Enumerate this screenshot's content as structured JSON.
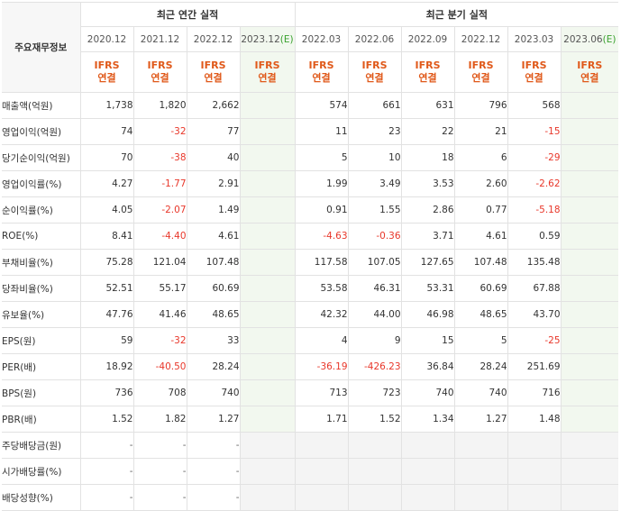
{
  "header": {
    "label": "주요재무정보",
    "annual_group": "최근 연간 실적",
    "quarter_group": "최근 분기 실적",
    "annual_periods": [
      "2020.12",
      "2021.12",
      "2022.12"
    ],
    "annual_estimate": {
      "period": "2023.12",
      "suffix": "(E)"
    },
    "quarter_periods": [
      "2022.03",
      "2022.06",
      "2022.09",
      "2022.12",
      "2023.03"
    ],
    "quarter_estimate": {
      "period": "2023.06",
      "suffix": "(E)"
    },
    "basis_line1": "IFRS",
    "basis_line2": "연결"
  },
  "rows": [
    {
      "label": "매출액(억원)",
      "annual": [
        "1,738",
        "1,820",
        "2,662",
        ""
      ],
      "quarter": [
        "574",
        "661",
        "631",
        "796",
        "568",
        ""
      ]
    },
    {
      "label": "영업이익(억원)",
      "annual": [
        "74",
        "-32",
        "77",
        ""
      ],
      "quarter": [
        "11",
        "23",
        "22",
        "21",
        "-15",
        ""
      ]
    },
    {
      "label": "당기순이익(억원)",
      "annual": [
        "70",
        "-38",
        "40",
        ""
      ],
      "quarter": [
        "5",
        "10",
        "18",
        "6",
        "-29",
        ""
      ]
    },
    {
      "label": "영업이익률(%)",
      "annual": [
        "4.27",
        "-1.77",
        "2.91",
        ""
      ],
      "quarter": [
        "1.99",
        "3.49",
        "3.53",
        "2.60",
        "-2.62",
        ""
      ]
    },
    {
      "label": "순이익률(%)",
      "annual": [
        "4.05",
        "-2.07",
        "1.49",
        ""
      ],
      "quarter": [
        "0.91",
        "1.55",
        "2.86",
        "0.77",
        "-5.18",
        ""
      ]
    },
    {
      "label": "ROE(%)",
      "annual": [
        "8.41",
        "-4.40",
        "4.61",
        ""
      ],
      "quarter": [
        "-4.63",
        "-0.36",
        "3.71",
        "4.61",
        "0.59",
        ""
      ]
    },
    {
      "label": "부채비율(%)",
      "annual": [
        "75.28",
        "121.04",
        "107.48",
        ""
      ],
      "quarter": [
        "117.58",
        "107.05",
        "127.65",
        "107.48",
        "135.48",
        ""
      ]
    },
    {
      "label": "당좌비율(%)",
      "annual": [
        "52.51",
        "55.17",
        "60.69",
        ""
      ],
      "quarter": [
        "53.58",
        "46.31",
        "53.31",
        "60.69",
        "67.88",
        ""
      ]
    },
    {
      "label": "유보율(%)",
      "annual": [
        "47.76",
        "41.46",
        "48.65",
        ""
      ],
      "quarter": [
        "42.32",
        "44.00",
        "46.98",
        "48.65",
        "43.70",
        ""
      ]
    },
    {
      "label": "EPS(원)",
      "annual": [
        "59",
        "-32",
        "33",
        ""
      ],
      "quarter": [
        "4",
        "9",
        "15",
        "5",
        "-25",
        ""
      ]
    },
    {
      "label": "PER(배)",
      "annual": [
        "18.92",
        "-40.50",
        "28.24",
        ""
      ],
      "quarter": [
        "-36.19",
        "-426.23",
        "36.84",
        "28.24",
        "251.69",
        ""
      ]
    },
    {
      "label": "BPS(원)",
      "annual": [
        "736",
        "708",
        "740",
        ""
      ],
      "quarter": [
        "713",
        "723",
        "740",
        "740",
        "716",
        ""
      ]
    },
    {
      "label": "PBR(배)",
      "annual": [
        "1.52",
        "1.82",
        "1.27",
        ""
      ],
      "quarter": [
        "1.71",
        "1.52",
        "1.34",
        "1.27",
        "1.48",
        ""
      ]
    },
    {
      "label": "주당배당금(원)",
      "annual": [
        "-",
        "-",
        "-",
        ""
      ],
      "quarter": [
        "",
        "",
        "",
        "",
        "",
        ""
      ]
    },
    {
      "label": "시가배당률(%)",
      "annual": [
        "-",
        "-",
        "-",
        ""
      ],
      "quarter": [
        "",
        "",
        "",
        "",
        "",
        ""
      ]
    },
    {
      "label": "배당성향(%)",
      "annual": [
        "-",
        "-",
        "-",
        ""
      ],
      "quarter": [
        "",
        "",
        "",
        "",
        "",
        ""
      ]
    }
  ],
  "colors": {
    "negative": "#e8372a",
    "basis": "#e0591a",
    "estimate": "#39a12e",
    "estimate_bg": "#f2f8ef"
  }
}
